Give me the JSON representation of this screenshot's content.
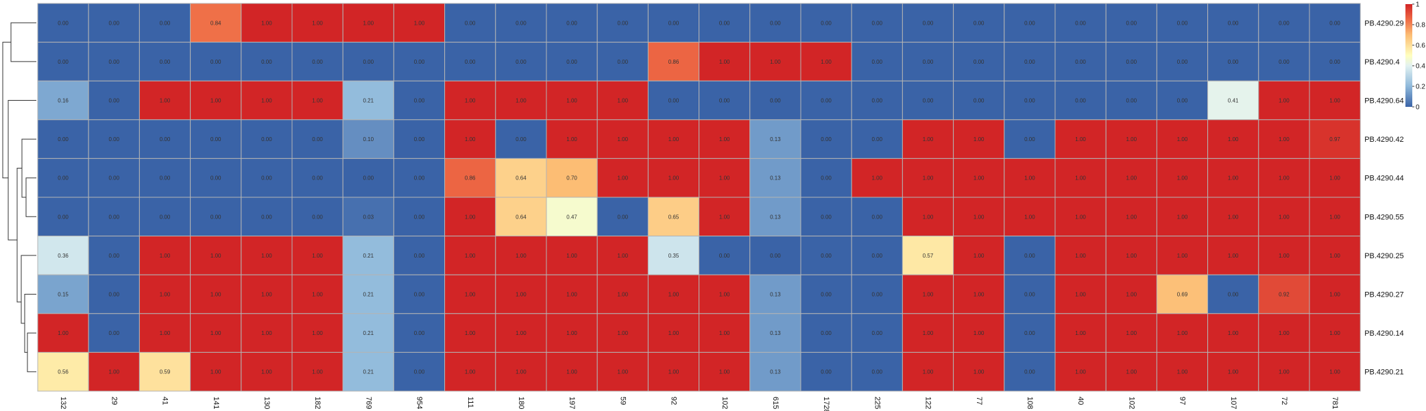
{
  "chart_data": {
    "type": "heatmap",
    "title": "",
    "xlabel": "",
    "ylabel": "",
    "columns": [
      "132",
      "29",
      "41",
      "141",
      "130",
      "182",
      "769",
      "954",
      "111",
      "180",
      "197",
      "59",
      "92",
      "102",
      "615",
      "1728",
      "225",
      "122",
      "77",
      "108",
      "40",
      "102",
      "97",
      "107",
      "72",
      "781"
    ],
    "rows": [
      "PB.4290.29",
      "PB.4290.4",
      "PB.4290.64",
      "PB.4290.42",
      "PB.4290.44",
      "PB.4290.55",
      "PB.4290.25",
      "PB.4290.27",
      "PB.4290.14",
      "PB.4290.21"
    ],
    "values": [
      [
        0,
        0,
        0,
        0.84,
        1,
        1,
        1,
        1,
        0,
        0,
        0,
        0,
        0,
        0,
        0,
        0,
        0,
        0,
        0,
        0,
        0,
        0,
        0,
        0,
        0,
        0
      ],
      [
        0,
        0,
        0,
        0,
        0,
        0,
        0,
        0,
        0,
        0,
        0,
        0,
        0.86,
        1,
        1,
        1,
        0,
        0,
        0,
        0,
        0,
        0,
        0,
        0,
        0,
        0
      ],
      [
        0.16,
        0,
        1,
        1,
        1,
        1,
        0.21,
        0,
        1,
        1,
        1,
        1,
        0,
        0,
        0,
        0,
        0,
        0,
        0,
        0,
        0,
        0,
        0,
        0.41,
        1,
        1
      ],
      [
        0,
        0,
        0,
        0,
        0,
        0,
        0.1,
        0,
        1,
        0,
        1,
        1,
        1,
        1,
        0.13,
        0,
        0,
        1,
        1,
        0,
        1,
        1,
        1,
        1,
        1,
        0.97
      ],
      [
        0,
        0,
        0,
        0,
        0,
        0,
        0,
        0,
        0.86,
        0.64,
        0.7,
        1,
        1,
        1,
        0.13,
        0,
        1,
        1,
        1,
        1,
        1,
        1,
        1,
        1,
        1,
        1
      ],
      [
        0,
        0,
        0,
        0,
        0,
        0,
        0.03,
        0,
        1,
        0.64,
        0.47,
        0,
        0.65,
        1,
        0.13,
        0,
        0,
        1,
        1,
        1,
        1,
        1,
        1,
        1,
        1,
        1
      ],
      [
        0.36,
        0,
        1,
        1,
        1,
        1,
        0.21,
        0,
        1,
        1,
        1,
        1,
        0.35,
        0,
        0,
        0,
        0,
        0.57,
        1,
        0,
        1,
        1,
        1,
        1,
        1,
        1
      ],
      [
        0.15,
        0,
        1,
        1,
        1,
        1,
        0.21,
        0,
        1,
        1,
        1,
        1,
        1,
        1,
        0.13,
        0,
        0,
        1,
        1,
        0,
        1,
        1,
        0.69,
        0,
        0.92,
        1
      ],
      [
        1,
        0,
        1,
        1,
        1,
        1,
        0.21,
        0,
        1,
        1,
        1,
        1,
        1,
        1,
        0.13,
        0,
        0,
        1,
        1,
        0,
        1,
        1,
        1,
        1,
        1,
        1
      ],
      [
        0.56,
        1,
        0.59,
        1,
        1,
        1,
        0.21,
        0,
        1,
        1,
        1,
        1,
        1,
        1,
        0.13,
        0,
        0,
        1,
        1,
        0,
        1,
        1,
        1,
        1,
        1,
        1
      ]
    ],
    "value_format": "0.00",
    "colorscale": {
      "range": [
        0,
        1
      ],
      "ticks": [
        "0",
        "0.2",
        "0.4",
        "0.6",
        "0.8",
        "1"
      ],
      "stops": [
        {
          "at": 0.0,
          "color": "#3A63A7"
        },
        {
          "at": 0.2,
          "color": "#8FB9DB"
        },
        {
          "at": 0.4,
          "color": "#E2F2F1"
        },
        {
          "at": 0.5,
          "color": "#FFFFBF"
        },
        {
          "at": 0.7,
          "color": "#FCBD74"
        },
        {
          "at": 0.85,
          "color": "#EE6A45"
        },
        {
          "at": 1.0,
          "color": "#D22526"
        }
      ]
    },
    "dendrogram": "row",
    "legend_position": "right"
  }
}
